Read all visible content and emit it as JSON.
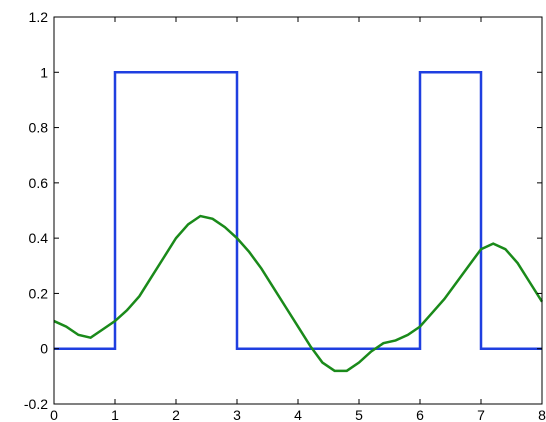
{
  "chart_data": {
    "type": "line",
    "title": "",
    "xlabel": "",
    "ylabel": "",
    "xlim": [
      0,
      8
    ],
    "ylim": [
      -0.2,
      1.2
    ],
    "x_ticks": [
      0,
      1,
      2,
      3,
      4,
      5,
      6,
      7,
      8
    ],
    "y_ticks": [
      -0.2,
      0,
      0.2,
      0.4,
      0.6,
      0.8,
      1,
      1.2
    ],
    "x_tick_labels": [
      "0",
      "1",
      "2",
      "3",
      "4",
      "5",
      "6",
      "7",
      "8"
    ],
    "y_tick_labels": [
      "-0.2",
      "0",
      "0.2",
      "0.4",
      "0.6",
      "0.8",
      "1",
      "1.2"
    ],
    "grid": false,
    "series": [
      {
        "color": "#1f3fe0",
        "x": [
          0,
          1,
          1,
          3,
          3,
          6,
          6,
          7,
          7,
          8
        ],
        "y": [
          0,
          0,
          1,
          1,
          0,
          0,
          1,
          1,
          0,
          0
        ]
      },
      {
        "color": "#1a8a1a",
        "x": [
          0,
          0.2,
          0.4,
          0.6,
          0.8,
          1.0,
          1.2,
          1.4,
          1.6,
          1.8,
          2.0,
          2.2,
          2.4,
          2.6,
          2.8,
          3.0,
          3.2,
          3.4,
          3.6,
          3.8,
          4.0,
          4.2,
          4.4,
          4.6,
          4.8,
          5.0,
          5.2,
          5.4,
          5.6,
          5.8,
          6.0,
          6.2,
          6.4,
          6.6,
          6.8,
          7.0,
          7.2,
          7.4,
          7.6,
          7.8,
          8.0
        ],
        "y": [
          0.1,
          0.08,
          0.05,
          0.04,
          0.07,
          0.1,
          0.14,
          0.19,
          0.26,
          0.33,
          0.4,
          0.45,
          0.48,
          0.47,
          0.44,
          0.4,
          0.35,
          0.29,
          0.22,
          0.15,
          0.08,
          0.01,
          -0.05,
          -0.08,
          -0.08,
          -0.05,
          -0.01,
          0.02,
          0.03,
          0.05,
          0.08,
          0.13,
          0.18,
          0.24,
          0.3,
          0.36,
          0.38,
          0.36,
          0.31,
          0.24,
          0.17
        ]
      }
    ]
  }
}
